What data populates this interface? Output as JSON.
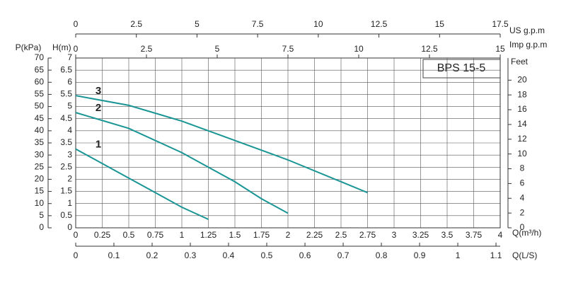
{
  "chart_data": {
    "type": "line",
    "title": "BPS 15-5",
    "xlabel": "Q(m³/h)",
    "xlim": [
      0,
      4
    ],
    "xticks": [
      0,
      0.25,
      0.5,
      0.75,
      1,
      1.25,
      1.5,
      1.75,
      2,
      2.25,
      2.5,
      2.75,
      3,
      3.25,
      3.5,
      3.75,
      4
    ],
    "ylabel": "H(m)",
    "ylim": [
      0,
      7
    ],
    "yticks": [
      0,
      0.5,
      1,
      1.5,
      2,
      2.5,
      3,
      3.5,
      4,
      4.5,
      5,
      5.5,
      6,
      6.5,
      7
    ],
    "grid": true,
    "p_axis": {
      "label": "P(kPa)",
      "lim": [
        0,
        70
      ],
      "ticks": [
        0,
        5,
        10,
        15,
        20,
        25,
        30,
        35,
        40,
        45,
        50,
        55,
        60,
        65,
        70
      ]
    },
    "feet_axis": {
      "label": "Feet",
      "lim": [
        0,
        23
      ],
      "ticks": [
        0,
        2,
        4,
        6,
        8,
        10,
        12,
        14,
        16,
        18,
        20
      ]
    },
    "us_axis": {
      "label": "US  g.p.m",
      "lim": [
        0,
        17.5
      ],
      "ticks": [
        0,
        2.5,
        5,
        7.5,
        10,
        12.5,
        15,
        17.5
      ]
    },
    "imp_axis": {
      "label": "Imp  g.p.m",
      "lim": [
        0,
        15
      ],
      "ticks": [
        0,
        2.5,
        5,
        7.5,
        10,
        12.5,
        15
      ]
    },
    "ls_axis": {
      "label": "Q(L/S)",
      "lim": [
        0,
        1.111
      ],
      "ticks": [
        0,
        0.1,
        0.2,
        0.3,
        0.4,
        0.5,
        0.6,
        0.7,
        0.8,
        0.9,
        1,
        1.1
      ]
    },
    "series": [
      {
        "name": "1",
        "color": "#1a9595",
        "x": [
          0,
          0.25,
          0.5,
          0.75,
          1,
          1.25
        ],
        "values": [
          3.25,
          2.65,
          2.05,
          1.45,
          0.85,
          0.35
        ]
      },
      {
        "name": "2",
        "color": "#1a9595",
        "x": [
          0,
          0.5,
          1,
          1.5,
          1.75,
          2
        ],
        "values": [
          4.75,
          4.1,
          3.1,
          1.9,
          1.2,
          0.6
        ]
      },
      {
        "name": "3",
        "color": "#1a9595",
        "x": [
          0,
          0.5,
          1,
          1.5,
          2,
          2.5,
          2.75
        ],
        "values": [
          5.45,
          5.05,
          4.4,
          3.6,
          2.8,
          1.9,
          1.45
        ]
      }
    ]
  }
}
